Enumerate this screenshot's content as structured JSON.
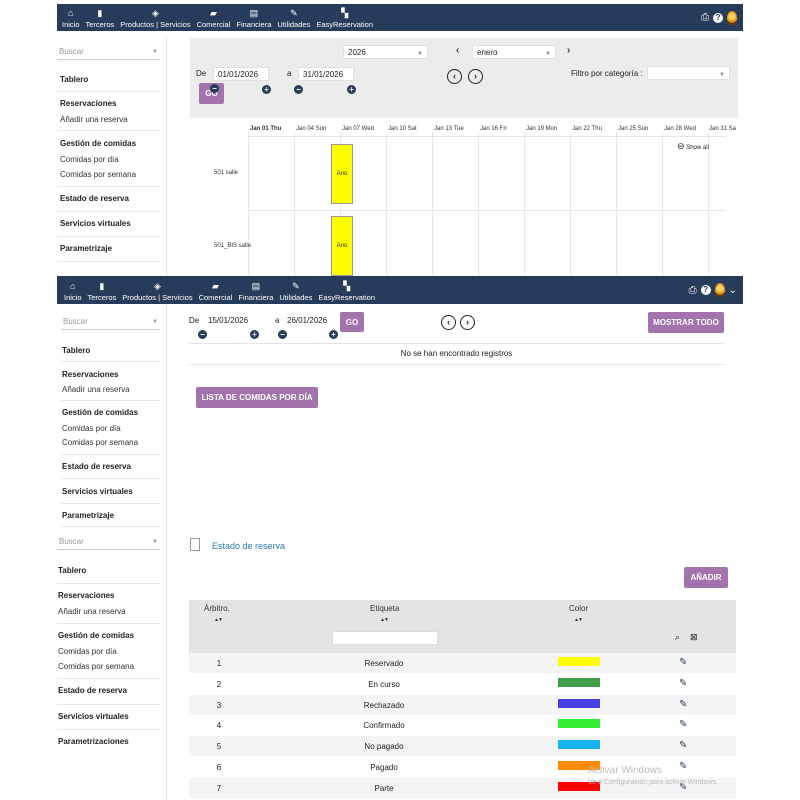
{
  "nav": {
    "items": [
      {
        "icon": "home-icon",
        "glyph": "⌂",
        "label": "Inicio"
      },
      {
        "icon": "building-icon",
        "glyph": "▮",
        "label": "Terceros"
      },
      {
        "icon": "cube-icon",
        "glyph": "◈",
        "label": "Productos | Servicios"
      },
      {
        "icon": "briefcase-icon",
        "glyph": "▰",
        "label": "Comercial"
      },
      {
        "icon": "money-icon",
        "glyph": "▤",
        "label": "Financiera"
      },
      {
        "icon": "wrench-icon",
        "glyph": "✎",
        "label": "Utilidades"
      },
      {
        "icon": "grid-icon",
        "glyph": "▚",
        "label": "EasyReservation"
      }
    ],
    "print_icon": "⎙",
    "help_icon": "?",
    "dropdown_caret": "⌄"
  },
  "sidebar": {
    "search_placeholder": "Buscar",
    "tablero": "Tablero",
    "reservaciones": "Reservaciones",
    "anadir": "Añadir una reserva",
    "gestion": "Gestión de comidas",
    "comidas_dia": "Comidas por día",
    "comidas_semana": "Comidas por semana",
    "estado": "Estado de reserva",
    "servicios": "Servicios virtuales",
    "param1": "Parametrizaje",
    "param3": "Parametrizaciones"
  },
  "panel1": {
    "year": "2026",
    "month": "enero",
    "de_label": "De",
    "date_from": "01/01/2026",
    "a_label": "a",
    "date_to": "31/01/2026",
    "go": "GO",
    "filter_label": "Filtro por categoría :",
    "show_all": "Show all",
    "timeline_headers": [
      "Jan 01 Thu",
      "Jan 04 Sun",
      "Jan 07 Wed",
      "Jan 10 Sat",
      "Jan 13 Tue",
      "Jan 16 Fri",
      "Jan 19 Mon",
      "Jan 22 Thu",
      "Jan 25 Sun",
      "Jan 28 Wed",
      "Jan 31 Sa"
    ],
    "rooms": [
      "501 salle",
      "501_BIS salle"
    ],
    "event_label": "Ano",
    "event_color": "#ffff00"
  },
  "panel2": {
    "de_label": "De",
    "date_from": "15/01/2026",
    "a_label": "a",
    "date_to": "26/01/2026",
    "go": "GO",
    "mostrar_todo": "MOSTRAR TODO",
    "no_records": "No se han encontrado registros",
    "lista_btn": "LISTA DE COMIDAS POR DÍA"
  },
  "panel3": {
    "page_title": "Estado de reserva",
    "anadir_btn": "AÑADIR",
    "columns": [
      "Árbitro.",
      "Etiqueta",
      "Color"
    ],
    "rows": [
      {
        "id": "1",
        "label": "Reservado",
        "color": "#ffff00"
      },
      {
        "id": "2",
        "label": "En curso",
        "color": "#3f9e47"
      },
      {
        "id": "3",
        "label": "Rechazado",
        "color": "#4a3fe0"
      },
      {
        "id": "4",
        "label": "Confirmado",
        "color": "#33ee33"
      },
      {
        "id": "5",
        "label": "No pagado",
        "color": "#17b3ee"
      },
      {
        "id": "6",
        "label": "Pagado",
        "color": "#ff8c00"
      },
      {
        "id": "7",
        "label": "Parte",
        "color": "#ff0000"
      }
    ],
    "watermark_title": "Activar Windows",
    "watermark_sub": "Ve a Configuración para activar Windows."
  },
  "colors": {
    "accent": "#a373ae",
    "nav": "#263c5a"
  }
}
